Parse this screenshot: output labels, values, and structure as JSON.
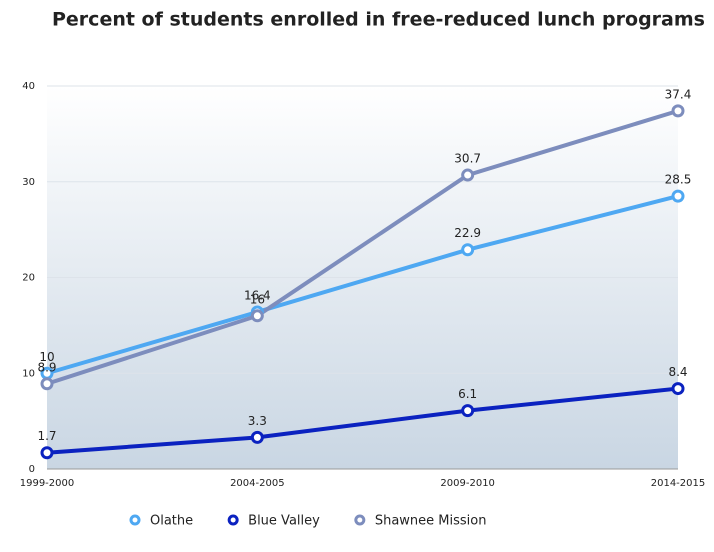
{
  "chart_data": {
    "type": "line",
    "title": "Percent of students enrolled in free-reduced lunch programs",
    "categories": [
      "1999-2000",
      "2004-2005",
      "2009-2010",
      "2014-2015"
    ],
    "series": [
      {
        "name": "Olathe",
        "color": "#4ea8f2",
        "values": [
          10,
          16.4,
          22.9,
          28.5
        ]
      },
      {
        "name": "Blue Valley",
        "color": "#0b22c0",
        "values": [
          1.7,
          3.3,
          6.1,
          8.4
        ]
      },
      {
        "name": "Shawnee Mission",
        "color": "#7d8dbd",
        "values": [
          8.9,
          16,
          30.7,
          37.4
        ]
      }
    ],
    "ylim": [
      0,
      40
    ],
    "yticks": [
      0,
      10,
      20,
      30,
      40
    ],
    "grid": true,
    "legend": "bottom"
  }
}
